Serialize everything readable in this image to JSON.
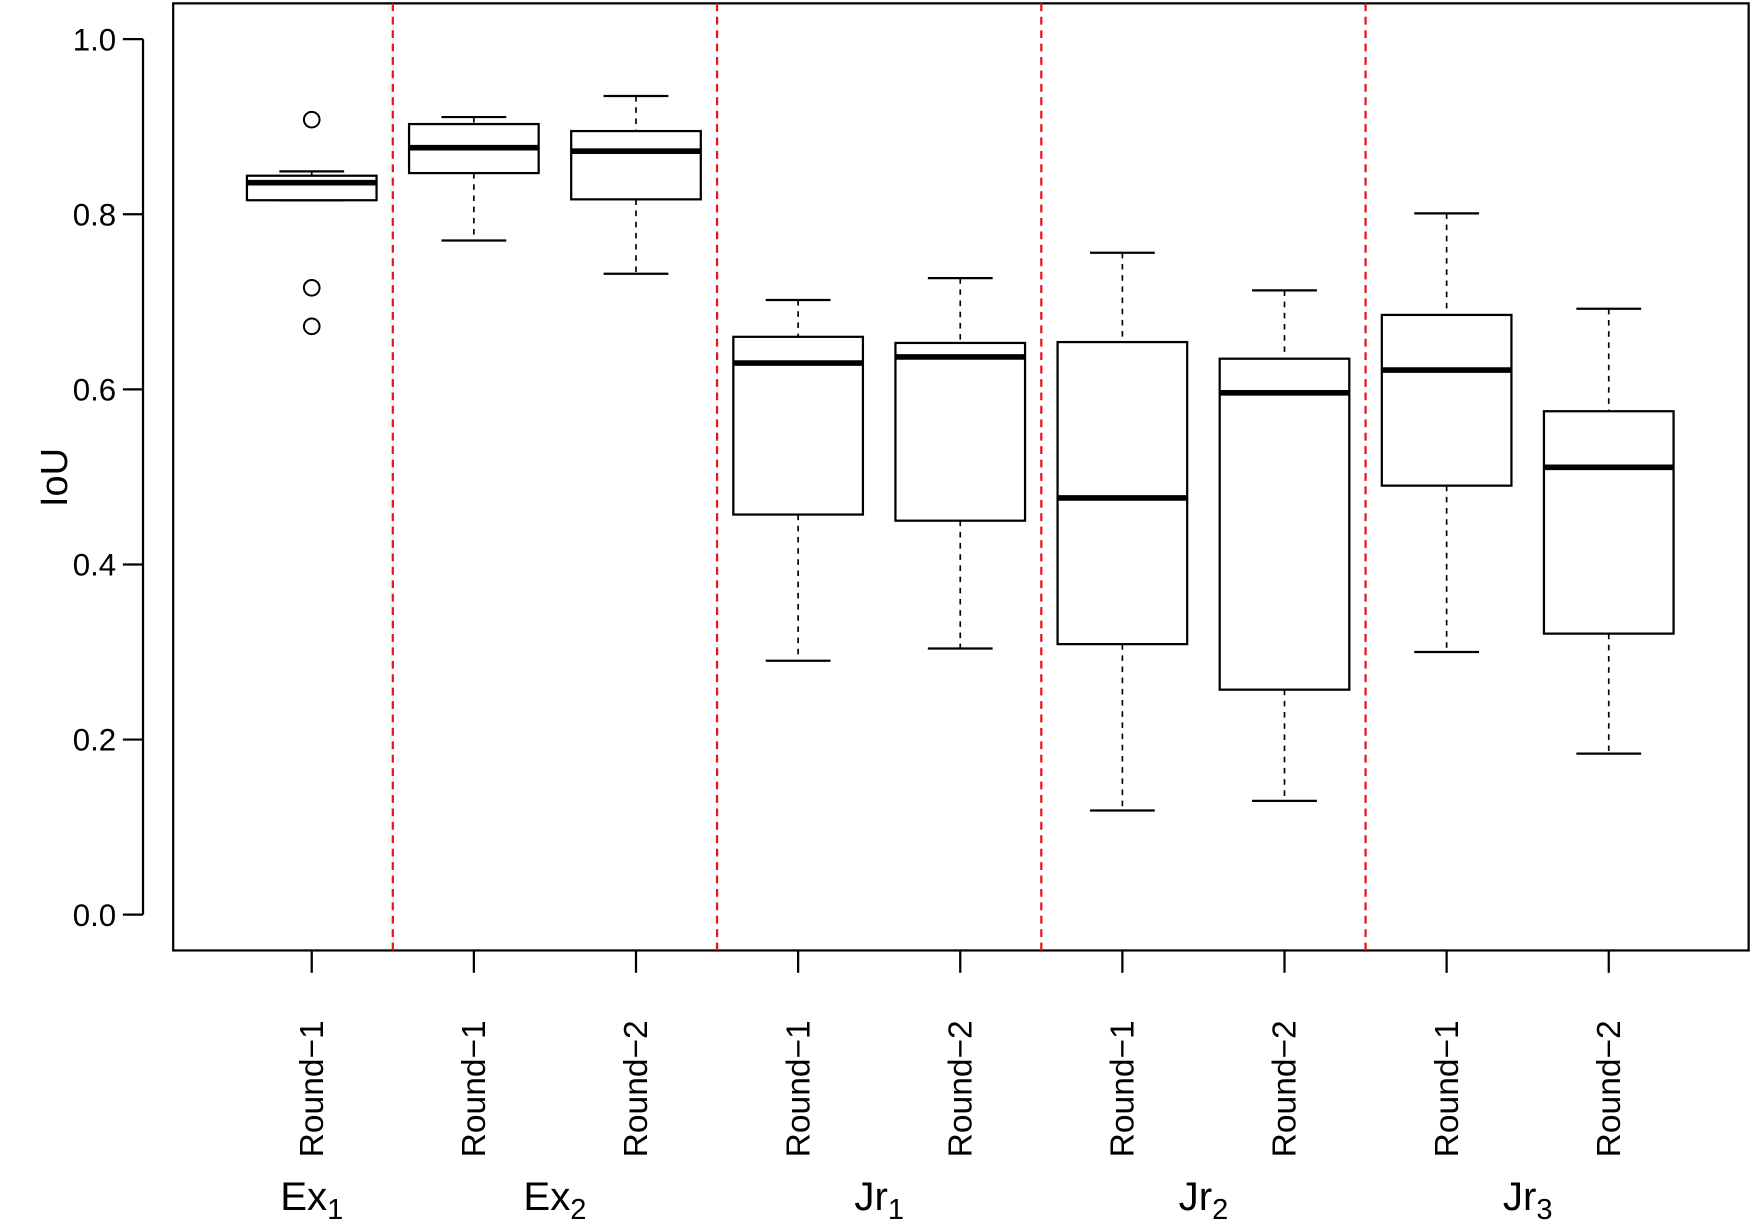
{
  "chart_data": {
    "type": "boxplot",
    "title": "",
    "xlabel": "",
    "ylabel": "IoU",
    "ylim": [
      0.0,
      1.0
    ],
    "yticks": [
      "0.0",
      "0.2",
      "0.4",
      "0.6",
      "0.8",
      "1.0"
    ],
    "grid": false,
    "colors": {
      "separator": "#e8141b",
      "box": "#000000"
    },
    "groups": [
      {
        "label": "Ex",
        "sub": "1",
        "boxes": [
          0
        ]
      },
      {
        "label": "Ex",
        "sub": "2",
        "boxes": [
          1,
          2
        ]
      },
      {
        "label": "Jr",
        "sub": "1",
        "boxes": [
          3,
          4
        ]
      },
      {
        "label": "Jr",
        "sub": "2",
        "boxes": [
          5,
          6
        ]
      },
      {
        "label": "Jr",
        "sub": "3",
        "boxes": [
          7,
          8
        ]
      }
    ],
    "boxes": [
      {
        "label": "Round−1",
        "whisker_low": 0.816,
        "q1": 0.816,
        "median": 0.836,
        "q3": 0.844,
        "whisker_high": 0.849,
        "outliers": [
          0.908,
          0.716,
          0.672
        ]
      },
      {
        "label": "Round−1",
        "whisker_low": 0.77,
        "q1": 0.847,
        "median": 0.876,
        "q3": 0.903,
        "whisker_high": 0.911,
        "outliers": []
      },
      {
        "label": "Round−2",
        "whisker_low": 0.732,
        "q1": 0.817,
        "median": 0.872,
        "q3": 0.895,
        "whisker_high": 0.935,
        "outliers": []
      },
      {
        "label": "Round−1",
        "whisker_low": 0.29,
        "q1": 0.457,
        "median": 0.63,
        "q3": 0.66,
        "whisker_high": 0.702,
        "outliers": []
      },
      {
        "label": "Round−2",
        "whisker_low": 0.304,
        "q1": 0.45,
        "median": 0.637,
        "q3": 0.653,
        "whisker_high": 0.727,
        "outliers": []
      },
      {
        "label": "Round−1",
        "whisker_low": 0.119,
        "q1": 0.309,
        "median": 0.476,
        "q3": 0.654,
        "whisker_high": 0.756,
        "outliers": []
      },
      {
        "label": "Round−2",
        "whisker_low": 0.13,
        "q1": 0.257,
        "median": 0.596,
        "q3": 0.635,
        "whisker_high": 0.713,
        "outliers": []
      },
      {
        "label": "Round−1",
        "whisker_low": 0.3,
        "q1": 0.49,
        "median": 0.622,
        "q3": 0.685,
        "whisker_high": 0.801,
        "outliers": []
      },
      {
        "label": "Round−2",
        "whisker_low": 0.184,
        "q1": 0.321,
        "median": 0.511,
        "q3": 0.575,
        "whisker_high": 0.692,
        "outliers": []
      }
    ]
  }
}
